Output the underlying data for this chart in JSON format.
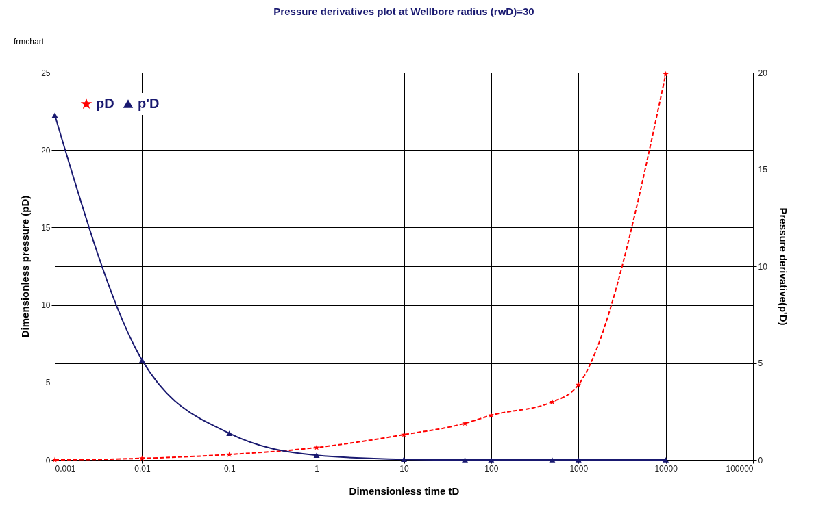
{
  "chart_data": {
    "type": "line",
    "title": "Pressure derivatives plot at Wellbore radius (rwD)=30",
    "xlabel": "Dimensionless time tD",
    "ylabel": "Dimensionless pressure (pD)",
    "y2label": "Pressure derivative(p'D)",
    "annotations": [
      "frmchart"
    ],
    "log": "x",
    "x": [
      0.001,
      0.01,
      0.1,
      1,
      10,
      50,
      100,
      500,
      1000,
      10000
    ],
    "series": [
      {
        "name": "pD",
        "color": "#ff0000",
        "marker": "star",
        "line_style": "dashed",
        "values": [
          0,
          0.1,
          0.35,
          0.8,
          1.63,
          2.36,
          2.88,
          3.74,
          4.85,
          24.9
        ]
      },
      {
        "name": "p'D",
        "color": "#191970",
        "marker": "triangle",
        "line_style": "solid",
        "axis": "y2",
        "values": [
          17.8,
          5.15,
          1.37,
          0.24,
          0.03,
          0,
          0,
          0,
          0,
          0
        ]
      }
    ],
    "xlim": [
      0.001,
      100000
    ],
    "xticks": [
      0.001,
      0.01,
      0.1,
      1,
      10,
      100,
      1000,
      10000,
      100000
    ],
    "ylim": [
      0,
      25
    ],
    "yticks": [
      0,
      5,
      10,
      15,
      20,
      25
    ],
    "y2lim": [
      0,
      20
    ],
    "y2ticks": [
      0,
      5,
      10,
      15,
      20
    ],
    "grid": true,
    "legend": "top left"
  }
}
